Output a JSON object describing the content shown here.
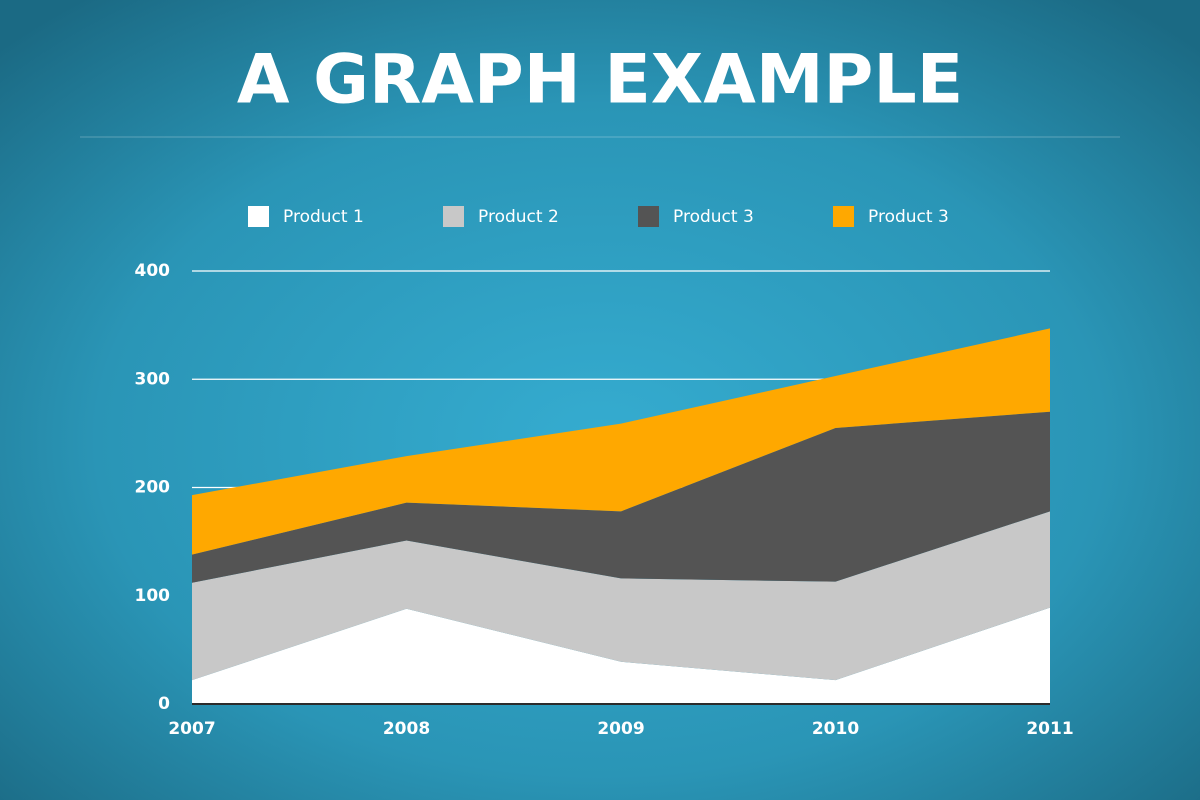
{
  "chart_data": {
    "type": "stacked_area",
    "title": "A GRAPH EXAMPLE",
    "categories": [
      "2007",
      "2008",
      "2009",
      "2010",
      "2011"
    ],
    "series": [
      {
        "name": "Product 1",
        "color": "#ffffff",
        "values": [
          22,
          88,
          39,
          22,
          89
        ]
      },
      {
        "name": "Product 2",
        "color": "#c8c8c8",
        "values": [
          90,
          63,
          77,
          91,
          89
        ]
      },
      {
        "name": "Product 3",
        "color": "#545454",
        "values": [
          26,
          35,
          62,
          142,
          92
        ]
      },
      {
        "name": "Product 3",
        "color": "#ffa800",
        "values": [
          55,
          43,
          81,
          48,
          77
        ]
      }
    ],
    "ylim": [
      0,
      400
    ],
    "yticks": [
      0,
      100,
      200,
      300,
      400
    ],
    "grid": true
  }
}
